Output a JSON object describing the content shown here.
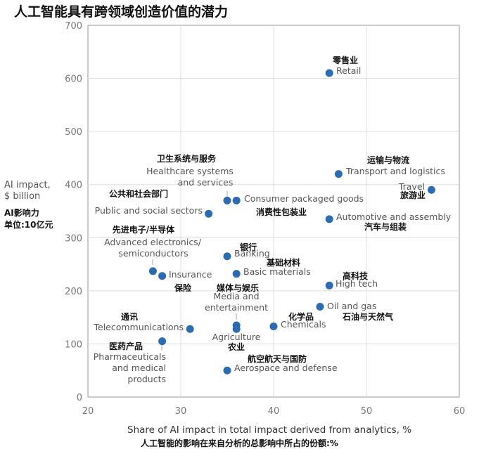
{
  "title": "人工智能具有跨领域创造价值的潜力",
  "y_axis": {
    "label_line1": "AI impact,",
    "label_line2": "$ billion",
    "label_cn_line1": "AI影响力",
    "label_cn_line2": "单位:10亿元"
  },
  "x_axis": {
    "label": "Share of AI impact in total impact derived from analytics, %",
    "label_cn": "人工智能的影响在来自分析的总影响中所占的份额:%"
  },
  "chart_data": {
    "type": "scatter",
    "title": "人工智能具有跨领域创造价值的潜力",
    "xlabel": "Share of AI impact in total impact derived from analytics, %",
    "ylabel": "AI impact, $ billion",
    "xlim": [
      20,
      60
    ],
    "ylim": [
      0,
      700
    ],
    "xticks": [
      20,
      30,
      40,
      50,
      60
    ],
    "yticks": [
      0,
      100,
      200,
      300,
      400,
      500,
      600,
      700
    ],
    "grid": true,
    "marker_color": "#2b6cb0",
    "points": [
      {
        "en": "Retail",
        "cn": "零售业",
        "x": 46,
        "y": 610
      },
      {
        "en": "Transport and logistics",
        "cn": "运输与物流",
        "x": 47,
        "y": 420
      },
      {
        "en": "Travel",
        "cn": "旅游业",
        "x": 57,
        "y": 390
      },
      {
        "en": "Healthcare systems and services",
        "cn": "卫生系统与服务",
        "x": 35,
        "y": 370
      },
      {
        "en": "Consumer packaged goods",
        "cn": "消费性包装业",
        "x": 36,
        "y": 370
      },
      {
        "en": "Public and social sectors",
        "cn": "公共和社会部门",
        "x": 33,
        "y": 345
      },
      {
        "en": "Automotive and assembly",
        "cn": "汽车与组装",
        "x": 46,
        "y": 335
      },
      {
        "en": "Banking",
        "cn": "银行",
        "x": 35,
        "y": 265
      },
      {
        "en": "Advanced electronics/semiconductors",
        "cn": "先进电子/半导体",
        "x": 27,
        "y": 237
      },
      {
        "en": "Basic materials",
        "cn": "基础材料",
        "x": 36,
        "y": 232
      },
      {
        "en": "Insurance",
        "cn": "保险",
        "x": 28,
        "y": 228
      },
      {
        "en": "High tech",
        "cn": "高科技",
        "x": 46,
        "y": 210
      },
      {
        "en": "Oil and gas",
        "cn": "石油与天然气",
        "x": 45,
        "y": 170
      },
      {
        "en": "Media and entertainment",
        "cn": "媒体与娱乐",
        "x": 36,
        "y": 135
      },
      {
        "en": "Chemicals",
        "cn": "化学品",
        "x": 40,
        "y": 133
      },
      {
        "en": "Agriculture",
        "cn": "农业",
        "x": 36,
        "y": 128
      },
      {
        "en": "Telecommunications",
        "cn": "通讯",
        "x": 31,
        "y": 128
      },
      {
        "en": "Pharmaceuticals and medical products",
        "cn": "医药产品",
        "x": 28,
        "y": 105
      },
      {
        "en": "Aerospace and defense",
        "cn": "航空航天与国防",
        "x": 35,
        "y": 50
      }
    ]
  }
}
